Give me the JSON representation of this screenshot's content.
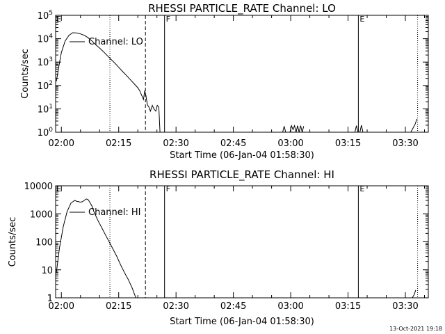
{
  "chart_data": [
    {
      "type": "line",
      "title": "RHESSI PARTICLE_RATE Channel: LO",
      "xlabel": "Start Time (06-Jan-04 01:58:30)",
      "ylabel": "Counts/sec",
      "yscale": "log",
      "ylim": [
        1,
        100000
      ],
      "xlim_minutes": [
        0,
        97.5
      ],
      "x_tick_labels": [
        "02:00",
        "02:15",
        "02:30",
        "02:45",
        "03:00",
        "03:15",
        "03:30"
      ],
      "x_tick_minutes": [
        1.5,
        16.5,
        31.5,
        46.5,
        61.5,
        76.5,
        91.5
      ],
      "y_tick_labels": [
        {
          "base": "10",
          "exp": "0",
          "value": 1
        },
        {
          "base": "10",
          "exp": "1",
          "value": 10
        },
        {
          "base": "10",
          "exp": "2",
          "value": 100
        },
        {
          "base": "10",
          "exp": "3",
          "value": 1000
        },
        {
          "base": "10",
          "exp": "4",
          "value": 10000
        },
        {
          "base": "10",
          "exp": "5",
          "value": 100000
        }
      ],
      "legend": {
        "label": "Channel: LO",
        "placement": "top-left"
      },
      "markers": [
        {
          "minute": 14.2,
          "style": "dotted",
          "label": ""
        },
        {
          "minute": 23.5,
          "style": "dashed",
          "label": ""
        },
        {
          "minute": 28.5,
          "style": "solid",
          "label": "F"
        },
        {
          "minute": 79.2,
          "style": "solid",
          "label": "E"
        },
        {
          "minute": 94.7,
          "style": "dotted",
          "label": ""
        }
      ],
      "corner_label": "E",
      "series": [
        {
          "x": [
            0.2,
            0.8,
            1.5,
            2.5,
            3.5,
            4.5,
            5.5,
            6.5,
            7.5,
            8.5,
            9.5,
            10.5,
            11.5,
            12.5,
            13.5,
            14.5,
            15.5,
            16.5,
            17.5,
            18.5,
            19.5,
            20.5,
            21.5,
            22.0,
            22.6,
            23.0,
            23.3,
            23.6,
            24.0,
            24.4,
            24.8,
            25.3,
            25.7,
            26.2,
            26.6,
            27.0,
            27.3
          ],
          "y": [
            150,
            600,
            2500,
            8000,
            14000,
            18000,
            17500,
            16000,
            14000,
            11000,
            8000,
            5500,
            4000,
            2800,
            1900,
            1300,
            900,
            600,
            400,
            270,
            180,
            120,
            80,
            60,
            35,
            25,
            60,
            40,
            15,
            12,
            8,
            14,
            10,
            8,
            14,
            12,
            1
          ]
        },
        {
          "x": [
            59.4,
            59.8,
            60.2
          ],
          "y": [
            1,
            1.8,
            1
          ]
        },
        {
          "x": [
            61.3,
            61.7,
            62.1,
            62.5,
            62.9,
            63.3,
            63.7,
            64.1,
            64.5,
            64.9
          ],
          "y": [
            1,
            1.9,
            1.3,
            1.9,
            1,
            1.9,
            1,
            1.9,
            1,
            1.8
          ]
        },
        {
          "x": [
            78.3,
            78.7,
            79.1
          ],
          "y": [
            1,
            1.9,
            1
          ]
        },
        {
          "x": [
            79.6,
            80.0,
            80.4
          ],
          "y": [
            1,
            2.0,
            1
          ]
        },
        {
          "x": [
            92.9,
            93.5,
            94.1,
            94.5
          ],
          "y": [
            1,
            1.5,
            2.3,
            3.7
          ]
        }
      ]
    },
    {
      "type": "line",
      "title": "RHESSI PARTICLE_RATE Channel: HI",
      "xlabel": "Start Time (06-Jan-04 01:58:30)",
      "ylabel": "Counts/sec",
      "yscale": "log",
      "ylim": [
        1,
        10000
      ],
      "xlim_minutes": [
        0,
        97.5
      ],
      "x_tick_labels": [
        "02:00",
        "02:15",
        "02:30",
        "02:45",
        "03:00",
        "03:15",
        "03:30"
      ],
      "x_tick_minutes": [
        1.5,
        16.5,
        31.5,
        46.5,
        61.5,
        76.5,
        91.5
      ],
      "y_tick_labels": [
        {
          "base": "1",
          "exp": "",
          "value": 1
        },
        {
          "base": "10",
          "exp": "",
          "value": 10
        },
        {
          "base": "100",
          "exp": "",
          "value": 100
        },
        {
          "base": "1000",
          "exp": "",
          "value": 1000
        },
        {
          "base": "10000",
          "exp": "",
          "value": 10000
        }
      ],
      "legend": {
        "label": "Channel: HI",
        "placement": "top-left"
      },
      "markers": [
        {
          "minute": 14.2,
          "style": "dotted",
          "label": ""
        },
        {
          "minute": 23.5,
          "style": "dashed",
          "label": ""
        },
        {
          "minute": 28.5,
          "style": "solid",
          "label": "F"
        },
        {
          "minute": 79.2,
          "style": "solid",
          "label": "E"
        },
        {
          "minute": 94.7,
          "style": "dotted",
          "label": ""
        }
      ],
      "corner_label": "E",
      "series": [
        {
          "x": [
            0.2,
            1.0,
            2.0,
            3.0,
            4.0,
            5.0,
            5.5,
            6.0,
            6.5,
            7.0,
            7.5,
            8.0,
            8.5,
            9.0,
            9.5,
            10.0,
            11.0,
            12.0,
            13.0,
            14.0,
            15.0,
            16.0,
            17.0,
            18.0,
            19.0,
            20.0,
            20.5,
            21.0
          ],
          "y": [
            8,
            60,
            350,
            1200,
            2400,
            3000,
            2800,
            2700,
            2600,
            2700,
            3000,
            3400,
            3200,
            2500,
            1900,
            1200,
            600,
            330,
            180,
            100,
            55,
            30,
            15,
            8,
            4.5,
            2.3,
            1.5,
            1
          ]
        },
        {
          "x": [
            93.3,
            93.8,
            94.2
          ],
          "y": [
            1,
            1.3,
            1.9
          ]
        }
      ]
    }
  ],
  "footer": {
    "timestamp": "13-Oct-2021 19:18"
  }
}
